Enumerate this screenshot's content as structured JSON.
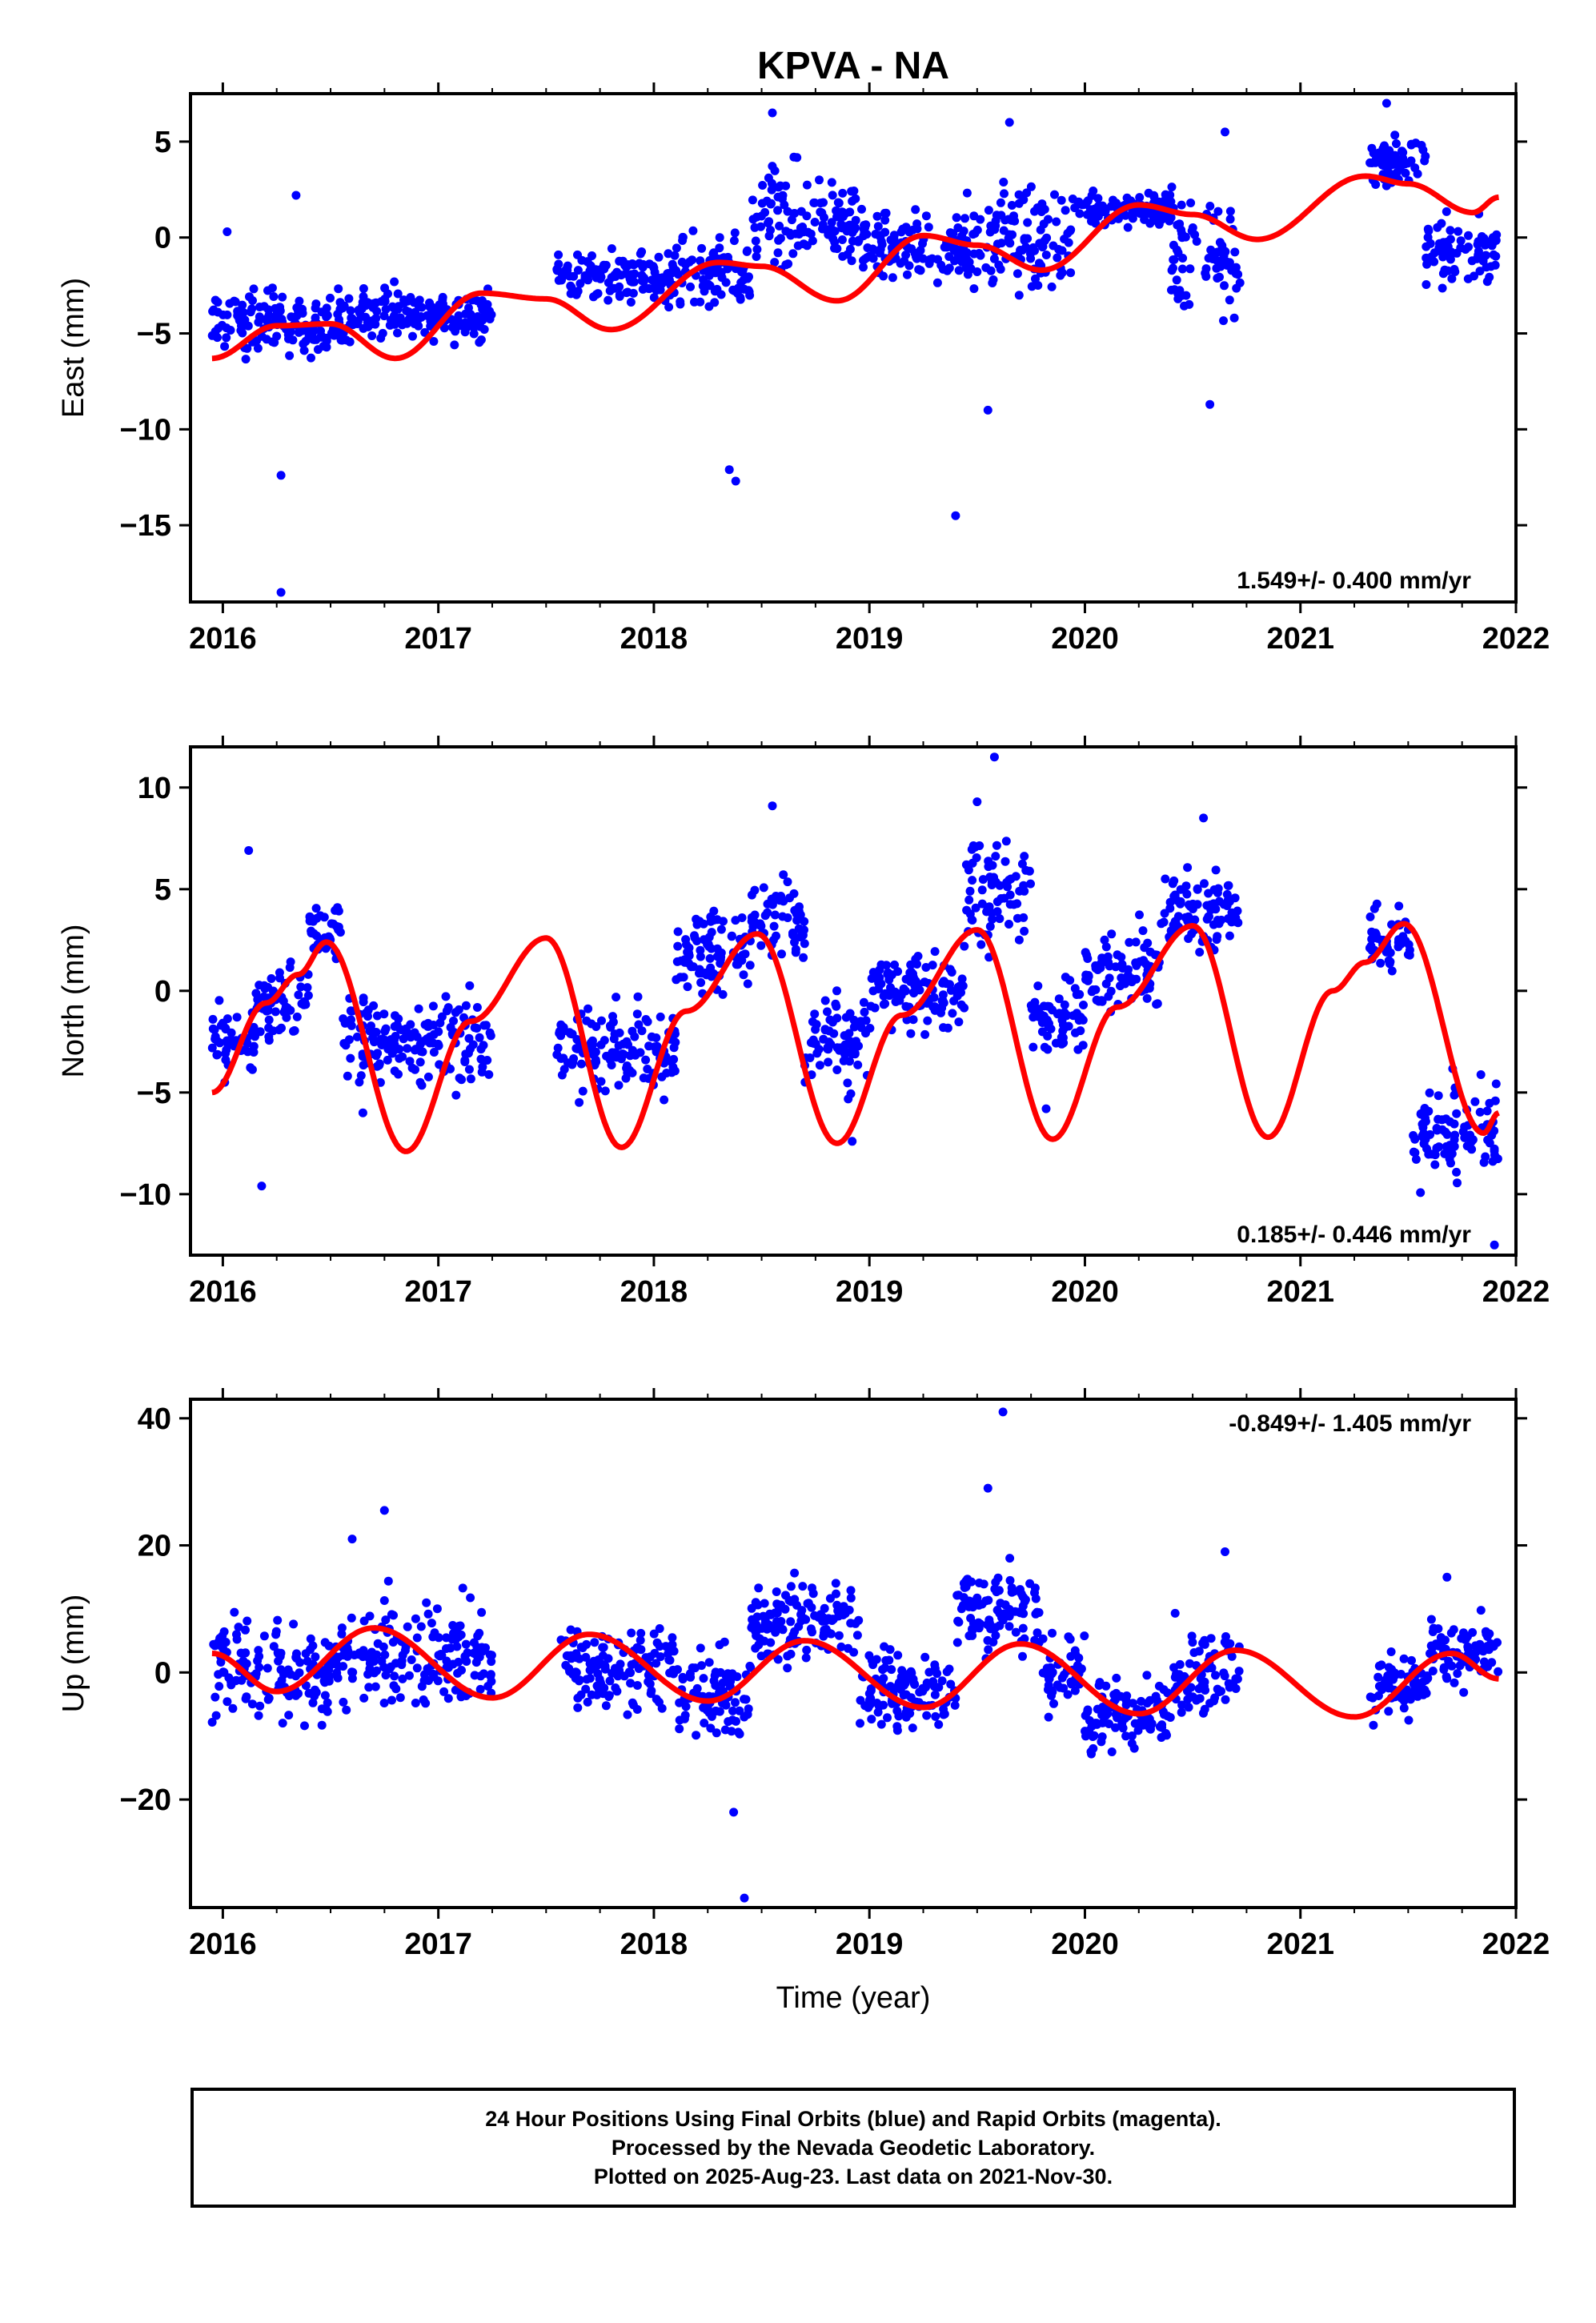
{
  "title": "KPVA - NA",
  "xlabel": "Time (year)",
  "caption": {
    "line1": "24 Hour Positions Using Final Orbits (blue) and Rapid Orbits (magenta).",
    "line2": "Processed by the Nevada Geodetic Laboratory.",
    "line3": "Plotted on 2025-Aug-23. Last data on 2021-Nov-30."
  },
  "colors": {
    "points": "#0000ff",
    "model": "#ff0000",
    "frame": "#000000"
  },
  "chart_data": [
    {
      "type": "scatter",
      "ylabel": "East (mm)",
      "rate_label": "1.549+/- 0.400 mm/yr",
      "xlim": [
        2015.85,
        2022.0
      ],
      "ylim": [
        -19,
        7.5
      ],
      "x_ticks": [
        2016,
        2017,
        2018,
        2019,
        2020,
        2021,
        2022
      ],
      "y_ticks": [
        5,
        0,
        -5,
        -10,
        -15
      ],
      "data_span": [
        2015.95,
        2021.92
      ],
      "gaps": [
        [
          2017.25,
          2017.55
        ],
        [
          2020.72,
          2021.32
        ]
      ],
      "series": [
        {
          "name": "Final Orbits",
          "cloud": [
            {
              "x": [
                2015.95,
                2016.55
              ],
              "y": [
                -7,
                -2
              ]
            },
            {
              "x": [
                2016.55,
                2017.25
              ],
              "y": [
                -6,
                -2
              ]
            },
            {
              "x": [
                2017.55,
                2018.1
              ],
              "y": [
                -4,
                0
              ]
            },
            {
              "x": [
                2018.1,
                2018.45
              ],
              "y": [
                -5,
                1
              ]
            },
            {
              "x": [
                2018.45,
                2018.95
              ],
              "y": [
                -3,
                5
              ]
            },
            {
              "x": [
                2018.95,
                2019.45
              ],
              "y": [
                -3,
                2
              ]
            },
            {
              "x": [
                2019.45,
                2019.95
              ],
              "y": [
                -4,
                4
              ]
            },
            {
              "x": [
                2019.95,
                2020.4
              ],
              "y": [
                0,
                3
              ]
            },
            {
              "x": [
                2020.4,
                2020.72
              ],
              "y": [
                -6,
                4
              ]
            },
            {
              "x": [
                2021.32,
                2021.58
              ],
              "y": [
                2,
                6
              ]
            },
            {
              "x": [
                2021.58,
                2021.92
              ],
              "y": [
                -3,
                1.5
              ]
            }
          ],
          "outliers": [
            [
              2016.02,
              0.3
            ],
            [
              2016.34,
              2.2
            ],
            [
              2016.27,
              -12.4
            ],
            [
              2016.27,
              -18.5
            ],
            [
              2018.35,
              -12.1
            ],
            [
              2018.38,
              -12.7
            ],
            [
              2019.4,
              -14.5
            ],
            [
              2018.55,
              6.5
            ],
            [
              2019.55,
              -9
            ],
            [
              2019.65,
              6
            ],
            [
              2020.58,
              -8.7
            ],
            [
              2020.65,
              5.5
            ],
            [
              2021.4,
              7
            ]
          ]
        }
      ],
      "model": [
        [
          2015.95,
          -6.3
        ],
        [
          2016.25,
          -4.6
        ],
        [
          2016.5,
          -4.5
        ],
        [
          2016.8,
          -6.3
        ],
        [
          2017.2,
          -2.9
        ],
        [
          2017.5,
          -3.2
        ],
        [
          2017.8,
          -4.8
        ],
        [
          2018.3,
          -1.3
        ],
        [
          2018.5,
          -1.5
        ],
        [
          2018.85,
          -3.3
        ],
        [
          2019.25,
          0.1
        ],
        [
          2019.5,
          -0.4
        ],
        [
          2019.8,
          -1.7
        ],
        [
          2020.25,
          1.7
        ],
        [
          2020.5,
          1.2
        ],
        [
          2020.8,
          -0.1
        ],
        [
          2021.3,
          3.2
        ],
        [
          2021.5,
          2.8
        ],
        [
          2021.8,
          1.3
        ],
        [
          2021.92,
          2.1
        ]
      ]
    },
    {
      "type": "scatter",
      "ylabel": "North (mm)",
      "rate_label": "0.185+/- 0.446 mm/yr",
      "xlim": [
        2015.85,
        2022.0
      ],
      "ylim": [
        -13,
        12
      ],
      "x_ticks": [
        2016,
        2017,
        2018,
        2019,
        2020,
        2021,
        2022
      ],
      "y_ticks": [
        10,
        5,
        0,
        -5,
        -10
      ],
      "data_span": [
        2015.95,
        2021.92
      ],
      "gaps": [
        [
          2017.25,
          2017.55
        ],
        [
          2020.72,
          2021.32
        ]
      ],
      "series": [
        {
          "name": "Final Orbits",
          "cloud": [
            {
              "x": [
                2015.95,
                2016.15
              ],
              "y": [
                -5,
                0
              ]
            },
            {
              "x": [
                2016.15,
                2016.4
              ],
              "y": [
                -3,
                2
              ]
            },
            {
              "x": [
                2016.4,
                2016.55
              ],
              "y": [
                1,
                5
              ]
            },
            {
              "x": [
                2016.55,
                2017.25
              ],
              "y": [
                -6,
                1
              ]
            },
            {
              "x": [
                2017.55,
                2018.1
              ],
              "y": [
                -6,
                0
              ]
            },
            {
              "x": [
                2018.1,
                2018.45
              ],
              "y": [
                -1,
                5
              ]
            },
            {
              "x": [
                2018.45,
                2018.7
              ],
              "y": [
                0,
                7
              ]
            },
            {
              "x": [
                2018.7,
                2019.0
              ],
              "y": [
                -6,
                1
              ]
            },
            {
              "x": [
                2019.0,
                2019.45
              ],
              "y": [
                -3,
                3
              ]
            },
            {
              "x": [
                2019.45,
                2019.75
              ],
              "y": [
                1,
                9
              ]
            },
            {
              "x": [
                2019.75,
                2020.0
              ],
              "y": [
                -4,
                1
              ]
            },
            {
              "x": [
                2020.0,
                2020.35
              ],
              "y": [
                -2,
                4
              ]
            },
            {
              "x": [
                2020.35,
                2020.72
              ],
              "y": [
                1,
                7
              ]
            },
            {
              "x": [
                2021.32,
                2021.52
              ],
              "y": [
                0,
                5
              ]
            },
            {
              "x": [
                2021.52,
                2021.92
              ],
              "y": [
                -11,
                -3
              ]
            }
          ],
          "outliers": [
            [
              2016.12,
              6.9
            ],
            [
              2016.18,
              -9.6
            ],
            [
              2018.55,
              9.1
            ],
            [
              2019.58,
              11.5
            ],
            [
              2019.5,
              9.3
            ],
            [
              2019.82,
              -5.8
            ],
            [
              2020.55,
              8.5
            ],
            [
              2021.9,
              -12.5
            ],
            [
              2016.65,
              -6
            ],
            [
              2018.92,
              -7.4
            ]
          ]
        }
      ],
      "model": [
        [
          2015.95,
          -5.0
        ],
        [
          2016.2,
          -0.6
        ],
        [
          2016.35,
          0.8
        ],
        [
          2016.48,
          2.4
        ],
        [
          2016.85,
          -7.9
        ],
        [
          2017.15,
          -1.5
        ],
        [
          2017.5,
          2.6
        ],
        [
          2017.85,
          -7.7
        ],
        [
          2018.15,
          -1.0
        ],
        [
          2018.48,
          2.8
        ],
        [
          2018.85,
          -7.5
        ],
        [
          2019.15,
          -1.2
        ],
        [
          2019.5,
          3.0
        ],
        [
          2019.85,
          -7.3
        ],
        [
          2020.15,
          -0.8
        ],
        [
          2020.5,
          3.2
        ],
        [
          2020.85,
          -7.2
        ],
        [
          2021.15,
          0.0
        ],
        [
          2021.3,
          1.4
        ],
        [
          2021.48,
          3.3
        ],
        [
          2021.85,
          -7.0
        ],
        [
          2021.92,
          -6.0
        ]
      ]
    },
    {
      "type": "scatter",
      "ylabel": "Up (mm)",
      "rate_label": "-0.849+/- 1.405 mm/yr",
      "xlim": [
        2015.85,
        2022.0
      ],
      "ylim": [
        -37,
        43
      ],
      "x_ticks": [
        2016,
        2017,
        2018,
        2019,
        2020,
        2021,
        2022
      ],
      "y_ticks": [
        40,
        20,
        0,
        -20
      ],
      "data_span": [
        2015.95,
        2021.92
      ],
      "gaps": [
        [
          2017.25,
          2017.55
        ],
        [
          2020.72,
          2021.32
        ]
      ],
      "series": [
        {
          "name": "Final Orbits",
          "cloud": [
            {
              "x": [
                2015.95,
                2016.5
              ],
              "y": [
                -12,
                12
              ]
            },
            {
              "x": [
                2016.5,
                2017.25
              ],
              "y": [
                -10,
                15
              ]
            },
            {
              "x": [
                2017.55,
                2018.1
              ],
              "y": [
                -8,
                10
              ]
            },
            {
              "x": [
                2018.1,
                2018.45
              ],
              "y": [
                -15,
                8
              ]
            },
            {
              "x": [
                2018.45,
                2018.95
              ],
              "y": [
                -2,
                18
              ]
            },
            {
              "x": [
                2018.95,
                2019.4
              ],
              "y": [
                -12,
                6
              ]
            },
            {
              "x": [
                2019.4,
                2019.8
              ],
              "y": [
                -2,
                22
              ]
            },
            {
              "x": [
                2019.8,
                2020.0
              ],
              "y": [
                -8,
                8
              ]
            },
            {
              "x": [
                2020.0,
                2020.4
              ],
              "y": [
                -15,
                2
              ]
            },
            {
              "x": [
                2020.4,
                2020.72
              ],
              "y": [
                -10,
                10
              ]
            },
            {
              "x": [
                2021.32,
                2021.6
              ],
              "y": [
                -10,
                6
              ]
            },
            {
              "x": [
                2021.6,
                2021.92
              ],
              "y": [
                -5,
                10
              ]
            }
          ],
          "outliers": [
            [
              2018.37,
              -22
            ],
            [
              2018.42,
              -35.5
            ],
            [
              2019.62,
              41
            ],
            [
              2016.75,
              25.5
            ],
            [
              2016.6,
              21
            ],
            [
              2019.55,
              29
            ],
            [
              2020.65,
              19
            ],
            [
              2021.68,
              15
            ]
          ]
        }
      ],
      "model": [
        [
          2015.95,
          3.0
        ],
        [
          2016.25,
          -3.0
        ],
        [
          2016.7,
          7.0
        ],
        [
          2017.25,
          -4.0
        ],
        [
          2017.7,
          6.0
        ],
        [
          2018.25,
          -4.5
        ],
        [
          2018.7,
          5.0
        ],
        [
          2019.25,
          -5.5
        ],
        [
          2019.7,
          4.5
        ],
        [
          2020.25,
          -6.5
        ],
        [
          2020.7,
          3.5
        ],
        [
          2021.25,
          -7.0
        ],
        [
          2021.7,
          3.0
        ],
        [
          2021.92,
          -1.0
        ]
      ]
    }
  ]
}
